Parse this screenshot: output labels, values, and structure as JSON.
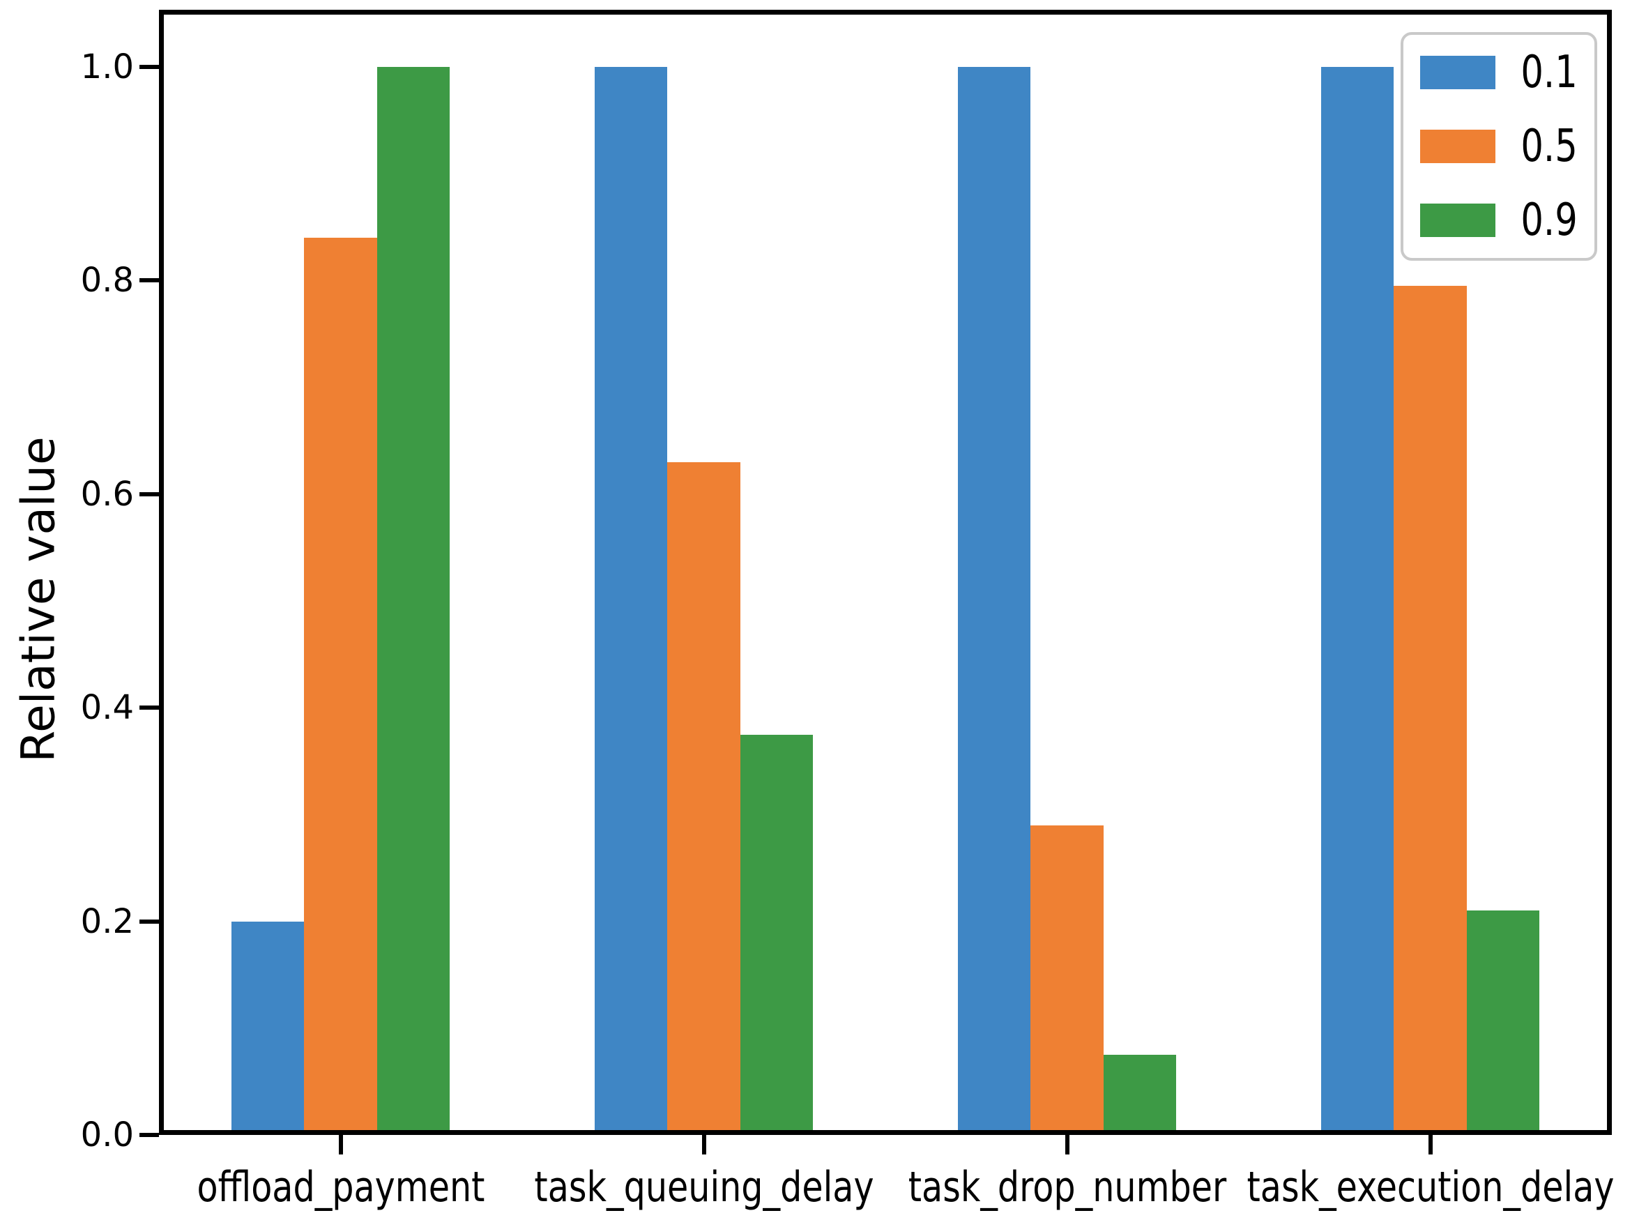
{
  "chart_data": {
    "type": "bar",
    "title": "",
    "xlabel": "",
    "ylabel": "Relative value",
    "categories": [
      "offload_payment",
      "task_queuing_delay",
      "task_drop_number",
      "task_execution_delay"
    ],
    "series": [
      {
        "name": "0.1",
        "color": "#3F86C5",
        "values": [
          0.2,
          1.0,
          1.0,
          1.0
        ]
      },
      {
        "name": "0.5",
        "color": "#EF8033",
        "values": [
          0.84,
          0.63,
          0.29,
          0.795
        ]
      },
      {
        "name": "0.9",
        "color": "#3D9A45",
        "values": [
          1.0,
          0.375,
          0.075,
          0.21
        ]
      }
    ],
    "ylim": [
      0.0,
      1.0
    ],
    "yticks": [
      "0.0",
      "0.2",
      "0.4",
      "0.6",
      "0.8",
      "1.0"
    ],
    "grid": false,
    "legend": {
      "position": "upper-right",
      "entries": [
        "0.1",
        "0.5",
        "0.9"
      ]
    }
  },
  "colors": {
    "axis": "#000000",
    "background": "#ffffff",
    "legend_border": "#c9c9c9"
  }
}
